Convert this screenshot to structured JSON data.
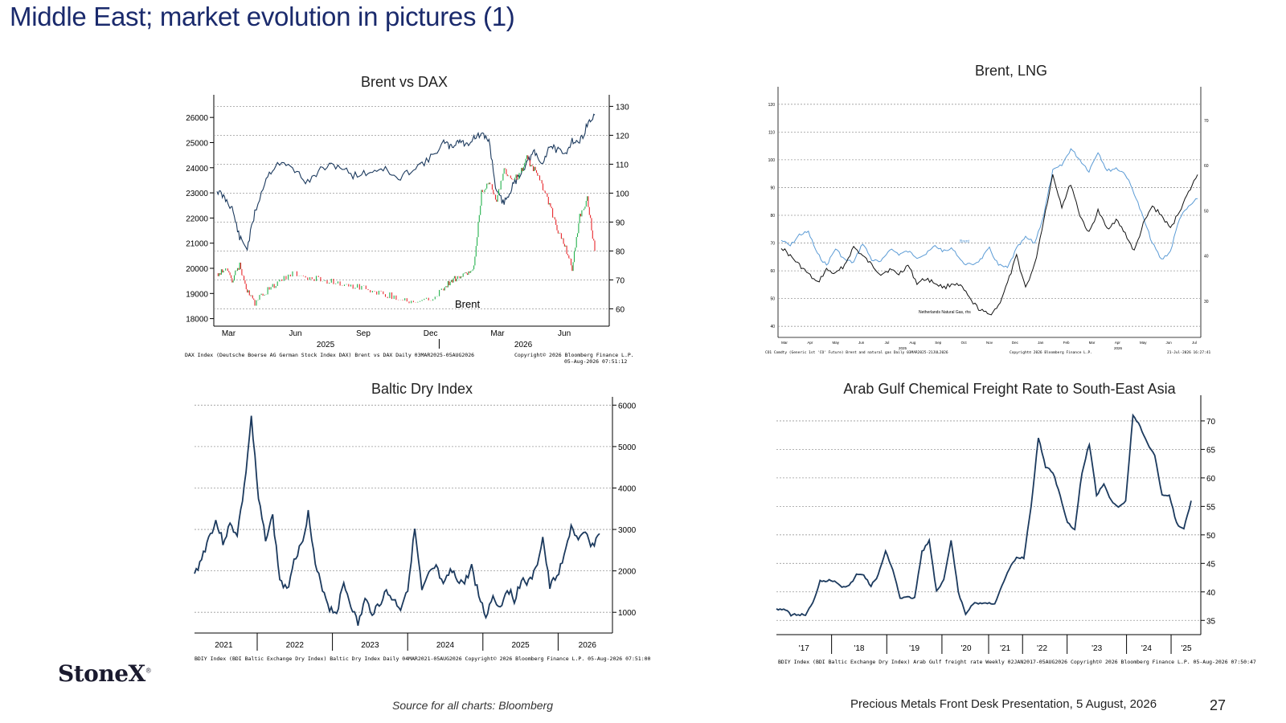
{
  "title": "Middle East; market evolution in pictures (1)",
  "logo": "StoneX",
  "source": "Source for all charts: Bloomberg",
  "footer_title": "Precious Metals Front Desk Presentation, 5 August, 2026",
  "page_number": "27",
  "colors": {
    "navy": "#1c3a5e",
    "title": "#1a2a6c",
    "green": "#22b14c",
    "red": "#e8262b",
    "light_blue": "#5b9bd5",
    "black": "#111111",
    "grid": "#999999"
  },
  "chart_data": [
    {
      "type": "line",
      "title": "Brent vs DAX",
      "series_label_annotation": "Brent",
      "y_left_ticks": [
        "26000",
        "25000",
        "24000",
        "23000",
        "22000",
        "21000",
        "20000",
        "19000",
        "18000"
      ],
      "y_right_ticks": [
        "130",
        "120",
        "110",
        "100",
        "90",
        "80",
        "70",
        "60"
      ],
      "x_ticks": [
        "Mar",
        "Jun",
        "Sep",
        "Dec",
        "Mar",
        "Jun"
      ],
      "year_labels": [
        "2025",
        "2026"
      ],
      "ylim_left": [
        17700,
        26900
      ],
      "ylim_right": [
        54,
        134
      ],
      "footnote_left": "DAX Index (Deutsche Boerse AG German Stock Index DAX) Brent vs DAX Daily 03MAR2025-05AUG2026",
      "footnote_right": "Copyright© 2026 Bloomberg Finance L.P.",
      "footnote_right2": "05-Aug-2026 07:51:12",
      "series": [
        {
          "axis": "left",
          "x": [
            0,
            0.02,
            0.04,
            0.06,
            0.08,
            0.1,
            0.13,
            0.16,
            0.2,
            0.24,
            0.28,
            0.32,
            0.36,
            0.4,
            0.44,
            0.48,
            0.52,
            0.56,
            0.6,
            0.62,
            0.64,
            0.66,
            0.68,
            0.7,
            0.72,
            0.74,
            0.76,
            0.78,
            0.8,
            0.82,
            0.84,
            0.86,
            0.88,
            0.9,
            0.92,
            0.94,
            0.96,
            0.98,
            1.0
          ],
          "values": [
            23100,
            22800,
            22400,
            21200,
            20800,
            22200,
            23600,
            24200,
            24000,
            23400,
            24000,
            24100,
            23700,
            23800,
            24000,
            23500,
            24000,
            24300,
            25000,
            24800,
            25100,
            24900,
            25200,
            25300,
            25100,
            23000,
            22600,
            23200,
            23700,
            24200,
            24600,
            24100,
            24900,
            24700,
            24500,
            25100,
            25000,
            25700,
            26100
          ]
        },
        {
          "axis": "right",
          "x": [
            0,
            0.02,
            0.04,
            0.06,
            0.08,
            0.1,
            0.13,
            0.16,
            0.2,
            0.24,
            0.28,
            0.32,
            0.36,
            0.4,
            0.44,
            0.48,
            0.52,
            0.56,
            0.6,
            0.62,
            0.64,
            0.66,
            0.68,
            0.7,
            0.72,
            0.74,
            0.76,
            0.78,
            0.8,
            0.82,
            0.84,
            0.86,
            0.88,
            0.9,
            0.92,
            0.94,
            0.96,
            0.98,
            1.0
          ],
          "values": [
            72,
            74,
            70,
            75,
            66,
            62,
            66,
            69,
            72,
            71,
            70,
            69,
            68,
            67,
            65,
            64,
            62,
            63,
            67,
            70,
            71,
            72,
            74,
            100,
            104,
            98,
            108,
            105,
            106,
            112,
            108,
            103,
            96,
            88,
            82,
            74,
            92,
            98,
            80
          ]
        }
      ]
    },
    {
      "type": "line",
      "title": "Brent, LNG",
      "series": [
        {
          "name": "Brent",
          "axis": "left",
          "values": [
            71,
            69,
            73,
            74,
            66,
            62,
            68,
            64,
            63,
            70,
            64,
            63,
            68,
            66,
            67,
            65,
            66,
            69,
            67,
            68,
            63,
            62,
            64,
            68,
            62,
            61,
            68,
            72,
            70,
            80,
            96,
            98,
            104,
            100,
            96,
            103,
            96,
            97,
            95,
            88,
            79,
            70,
            64,
            67,
            79,
            83,
            86
          ]
        },
        {
          "name": "Netherlands Natural Gas, rhs",
          "axis": "right",
          "values": [
            42,
            40,
            38,
            36,
            34,
            37,
            36,
            38,
            42,
            40,
            38,
            36,
            37,
            36,
            38,
            34,
            35,
            34,
            33,
            34,
            33,
            30,
            28,
            27,
            29,
            34,
            40,
            33,
            38,
            48,
            58,
            51,
            56,
            49,
            45,
            50,
            46,
            48,
            45,
            41,
            47,
            51,
            49,
            46,
            50,
            54,
            58
          ]
        }
      ],
      "y_left_ticks": [
        "120",
        "110",
        "100",
        "90",
        "80",
        "70",
        "60",
        "50",
        "40"
      ],
      "y_right_ticks": [
        "70",
        "60",
        "50",
        "40",
        "30"
      ],
      "x_ticks": [
        "Mar",
        "Apr",
        "May",
        "Jun",
        "Jul",
        "Aug",
        "Sep",
        "Oct",
        "Nov",
        "Dec",
        "Jan",
        "Feb",
        "Mar",
        "Apr",
        "May",
        "Jun",
        "Jul"
      ],
      "year_labels": [
        "2025",
        "2026"
      ],
      "ylim_left": [
        36,
        124
      ],
      "ylim_right": [
        22,
        76
      ],
      "footnote_left": "CO1 Comdty (Generic 1st 'CO' Future) Brent and natural gas Daily 03MAR2025-21JUL2026",
      "footnote_mid": "Copyright© 2026 Bloomberg Finance L.P.",
      "footnote_right": "21-Jul-2026 16:27:41"
    },
    {
      "type": "line",
      "title": "Baltic Dry Index",
      "series": [
        {
          "name": "BDIY",
          "values": [
            1900,
            2300,
            2800,
            3200,
            2700,
            3100,
            2900,
            4000,
            5700,
            3700,
            2800,
            3300,
            1800,
            1500,
            2300,
            2600,
            3400,
            2100,
            1600,
            1100,
            1000,
            1700,
            1200,
            700,
            1300,
            1000,
            1200,
            1500,
            1300,
            1100,
            1600,
            3000,
            1500,
            1900,
            2100,
            1600,
            2000,
            1800,
            1700,
            2100,
            1400,
            900,
            1400,
            1100,
            1600,
            1300,
            1800,
            1700,
            2000,
            2800,
            1600,
            1900,
            2300,
            3100,
            2700,
            2900,
            2600,
            2900
          ]
        }
      ],
      "y_ticks": [
        "6000",
        "5000",
        "4000",
        "3000",
        "2000",
        "1000"
      ],
      "x_ticks": [
        "2021",
        "2022",
        "2023",
        "2024",
        "2025",
        "2026"
      ],
      "ylim": [
        500,
        6200
      ],
      "footnote": "BDIY Index (BDI Baltic Exchange Dry Index) Baltic Dry Index Daily 04MAR2021-05AUG2026  Copyright© 2026 Bloomberg Finance L.P.  05-Aug-2026 07:51:00"
    },
    {
      "type": "line",
      "title": "Arab Gulf Chemical Freight Rate to South-East Asia",
      "series": [
        {
          "name": "Arab Gulf freight rate",
          "values": [
            37,
            37,
            36,
            36,
            36,
            38,
            42,
            42,
            42,
            41,
            41,
            43,
            43,
            41,
            43,
            47,
            44,
            39,
            39,
            39,
            47,
            49,
            40,
            42,
            49,
            40,
            36,
            38,
            38,
            38,
            38,
            41,
            44,
            46,
            46,
            55,
            67,
            62,
            61,
            57,
            52,
            51,
            61,
            66,
            57,
            59,
            56,
            55,
            56,
            71,
            69,
            66,
            64,
            57,
            57,
            52,
            51,
            56
          ]
        }
      ],
      "y_ticks": [
        "70",
        "65",
        "60",
        "55",
        "50",
        "45",
        "40",
        "35"
      ],
      "x_ticks": [
        "'17",
        "'18",
        "'19",
        "'20",
        "'21",
        "'22",
        "'23",
        "'24",
        "'25"
      ],
      "ylim": [
        32.5,
        74.5
      ],
      "footnote": "BDIY Index (BDI Baltic Exchange Dry Index) Arab Gulf freight rate Weekly 02JAN2017-05AUG2026  Copyright© 2026 Bloomberg Finance L.P.  05-Aug-2026 07:50:47"
    }
  ]
}
